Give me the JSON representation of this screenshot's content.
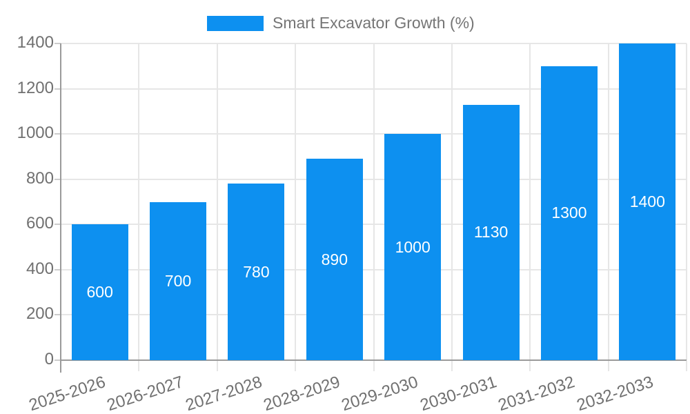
{
  "legend": {
    "label": "Smart Excavator Growth (%)"
  },
  "chart_data": {
    "type": "bar",
    "title": "Smart Excavator Growth (%)",
    "categories": [
      "2025-2026",
      "2026-2027",
      "2027-2028",
      "2028-2029",
      "2029-2030",
      "2030-2031",
      "2031-2032",
      "2032-2033"
    ],
    "values": [
      600,
      700,
      780,
      890,
      1000,
      1130,
      1300,
      1400
    ],
    "series": [
      {
        "name": "Smart Excavator Growth (%)",
        "values": [
          600,
          700,
          780,
          890,
          1000,
          1130,
          1300,
          1400
        ]
      }
    ],
    "xlabel": "",
    "ylabel": "",
    "ylim": [
      0,
      1400
    ],
    "yticks": [
      0,
      200,
      400,
      600,
      800,
      1000,
      1200,
      1400
    ],
    "grid": true,
    "legend_position": "top-center",
    "value_labels_inside_bars": true,
    "x_label_rotation_deg": -18
  },
  "colors": {
    "bar": "#0d90f0",
    "grid": "#e6e6e6",
    "axis": "#9a9a9a",
    "tick": "#cccccc",
    "axis_label_text": "#707070",
    "legend_text": "#757575",
    "bar_value_text": "#ffffff",
    "background": "#ffffff"
  }
}
